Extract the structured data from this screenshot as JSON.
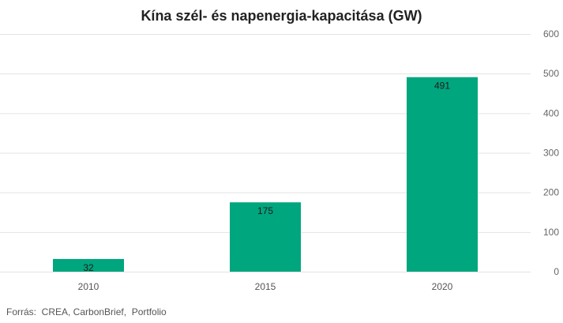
{
  "chart_data": {
    "type": "bar",
    "title": "Kína szél- és napenergia-kapacitása (GW)",
    "categories": [
      "2010",
      "2015",
      "2020"
    ],
    "values": [
      32,
      175,
      491
    ],
    "data_labels": [
      "32",
      "175",
      "491"
    ],
    "y_ticks": [
      "0",
      "100",
      "200",
      "300",
      "400",
      "500",
      "600"
    ],
    "ylim": [
      0,
      600
    ],
    "y_axis_side": "right",
    "grid": true,
    "legend": false,
    "bar_color": "#00a67e",
    "grid_color": "#e3e3e3"
  },
  "source_text": "Forrás:  CREA, CarbonBrief,  Portfolio"
}
